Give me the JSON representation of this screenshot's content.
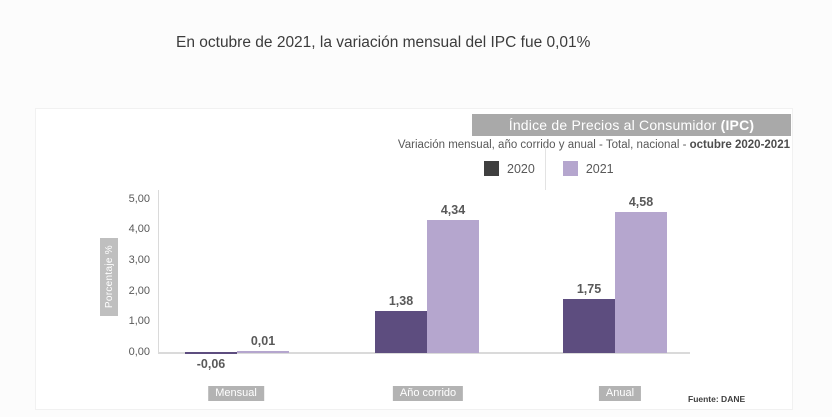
{
  "page_title": "En octubre de 2021, la variación mensual del IPC fue 0,01%",
  "panel": {
    "header": {
      "title": "Índice de Precios al Consumidor",
      "title_bold": "(IPC)"
    },
    "subtitle": {
      "normal": "Variación mensual, año corrido y anual  - Total, nacional - ",
      "bold": "octubre 2020-2021"
    },
    "source": "Fuente: DANE"
  },
  "colors": {
    "band_background": "#a9a9a9",
    "label_box_background": "#b3b3b3",
    "ylabel_box_background": "#bfbfbf",
    "axis_line": "#dadada",
    "text_gray": "#595959"
  },
  "chart_data": {
    "type": "bar",
    "title": "Índice de Precios al Consumidor (IPC)",
    "subtitle": "Variación mensual, año corrido y anual - Total, nacional - octubre 2020-2021",
    "categories": [
      "Mensual",
      "Año corrido",
      "Anual"
    ],
    "series": [
      {
        "name": "2020",
        "color": "#5d4d7f",
        "swatch": "#3f3f3f",
        "values": [
          -0.06,
          1.38,
          1.75
        ],
        "labels": [
          "-0,06",
          "1,38",
          "1,75"
        ]
      },
      {
        "name": "2021",
        "color": "#b5a6ce",
        "swatch": "#b5a6ce",
        "values": [
          0.01,
          4.34,
          4.58
        ],
        "labels": [
          "0,01",
          "4,34",
          "4,58"
        ]
      }
    ],
    "xlabel": "",
    "ylabel": "Porcentaje %",
    "ylim": [
      0,
      5
    ],
    "yticks": [
      "0,00",
      "1,00",
      "2,00",
      "3,00",
      "4,00",
      "5,00"
    ],
    "legend_position": "top",
    "grid": false,
    "source": "Fuente: DANE"
  }
}
